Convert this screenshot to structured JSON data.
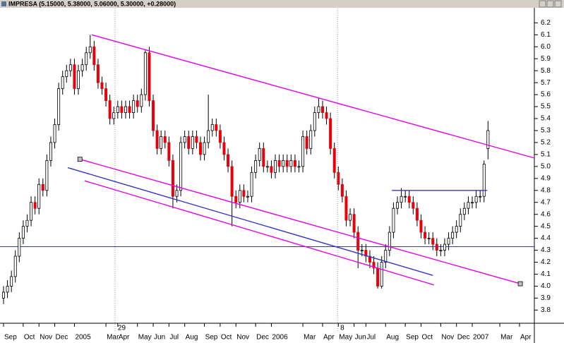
{
  "chart_data": {
    "type": "candlestick",
    "title": "IMPRESA (5.15000, 5.38000, 5.06000, 5.30000, +0.28000)",
    "categories": [
      "Sep",
      null,
      null,
      null,
      null,
      "Oct",
      null,
      null,
      null,
      "Nov",
      null,
      null,
      null,
      "Dec",
      null,
      null,
      null,
      null,
      "2005",
      null,
      null,
      null,
      null,
      null,
      null,
      null,
      "Mar",
      null,
      null,
      "Apr",
      null,
      null,
      null,
      null,
      "May",
      null,
      null,
      null,
      "Jun",
      null,
      null,
      null,
      "Jul",
      null,
      null,
      null,
      "Aug",
      null,
      null,
      null,
      null,
      "Sep",
      null,
      null,
      null,
      "Oct",
      null,
      null,
      null,
      "Nov",
      null,
      null,
      null,
      null,
      "Dec",
      null,
      null,
      null,
      "2006",
      null,
      null,
      null,
      null,
      null,
      null,
      null,
      "Mar",
      null,
      null,
      null,
      null,
      "Apr",
      null,
      null,
      null,
      "May",
      null,
      null,
      null,
      "Jun",
      null,
      null,
      "Jul",
      null,
      null,
      null,
      null,
      "Aug",
      null,
      null,
      null,
      null,
      "Sep",
      null,
      null,
      null,
      "Oct",
      null,
      null,
      null,
      null,
      "Nov",
      null,
      null,
      null,
      "Dec",
      null,
      null,
      null,
      "2007",
      null,
      null,
      null,
      null,
      null,
      null,
      "Mar",
      null,
      null,
      null,
      null,
      "Apr"
    ],
    "open": [
      3.9,
      3.95,
      4.0,
      4.08,
      4.25,
      4.4,
      4.5,
      4.55,
      4.7,
      4.65,
      4.85,
      4.8,
      5.05,
      5.2,
      5.35,
      5.65,
      5.75,
      5.8,
      5.85,
      5.65,
      5.8,
      5.85,
      5.95,
      6.0,
      5.85,
      5.7,
      5.65,
      5.55,
      5.4,
      5.45,
      5.5,
      5.45,
      5.5,
      5.45,
      5.55,
      5.5,
      5.6,
      5.95,
      5.55,
      5.3,
      5.15,
      5.25,
      5.2,
      5.05,
      4.75,
      4.8,
      5.2,
      5.25,
      5.15,
      5.25,
      5.2,
      5.1,
      5.2,
      5.3,
      5.35,
      5.3,
      5.2,
      5.1,
      5.0,
      4.75,
      4.7,
      4.8,
      4.75,
      4.75,
      4.95,
      5.05,
      5.15,
      5.0,
      5.0,
      4.95,
      5.05,
      5.0,
      5.05,
      5.0,
      5.05,
      5.0,
      5.0,
      5.25,
      5.15,
      5.3,
      5.45,
      5.5,
      5.45,
      5.4,
      5.15,
      4.95,
      4.85,
      4.75,
      4.55,
      4.6,
      4.45,
      4.3,
      4.3,
      4.25,
      4.2,
      4.15,
      4.0,
      4.2,
      4.3,
      4.45,
      4.65,
      4.7,
      4.75,
      4.75,
      4.7,
      4.65,
      4.55,
      4.45,
      4.4,
      4.4,
      4.35,
      4.3,
      4.3,
      4.35,
      4.4,
      4.45,
      4.5,
      4.6,
      4.65,
      4.7,
      4.7,
      4.75,
      4.75,
      5.15,
      null,
      null,
      null,
      null,
      null,
      null,
      null,
      null
    ],
    "high": [
      4.0,
      4.05,
      4.13,
      4.3,
      4.45,
      4.55,
      4.6,
      4.75,
      4.75,
      4.9,
      4.9,
      5.1,
      5.25,
      5.4,
      5.7,
      5.8,
      5.85,
      5.9,
      5.9,
      5.85,
      5.9,
      6.0,
      6.1,
      6.05,
      5.9,
      5.75,
      5.7,
      5.6,
      5.5,
      5.55,
      5.55,
      5.55,
      5.55,
      5.6,
      5.6,
      5.65,
      5.97,
      6.0,
      5.6,
      5.35,
      5.3,
      5.3,
      5.25,
      5.1,
      4.85,
      5.25,
      5.3,
      5.3,
      5.3,
      5.3,
      5.25,
      5.25,
      5.6,
      5.4,
      5.4,
      5.35,
      5.25,
      5.15,
      5.05,
      4.8,
      4.85,
      4.85,
      4.8,
      5.0,
      5.1,
      5.2,
      5.2,
      5.05,
      5.05,
      5.1,
      5.1,
      5.1,
      5.1,
      5.1,
      5.1,
      5.05,
      5.3,
      5.3,
      5.35,
      5.5,
      5.57,
      5.55,
      5.5,
      5.45,
      5.2,
      5.0,
      4.9,
      4.8,
      4.65,
      4.65,
      4.5,
      4.35,
      4.35,
      4.3,
      4.25,
      4.2,
      4.25,
      4.35,
      4.5,
      4.7,
      4.75,
      4.82,
      4.8,
      4.8,
      4.75,
      4.7,
      4.6,
      4.5,
      4.45,
      4.45,
      4.4,
      4.35,
      4.4,
      4.45,
      4.5,
      4.55,
      4.65,
      4.7,
      4.75,
      4.75,
      4.8,
      4.8,
      5.05,
      5.38,
      null,
      null,
      null,
      null,
      null,
      null,
      null,
      null
    ],
    "low": [
      3.85,
      3.9,
      3.95,
      4.03,
      4.2,
      4.35,
      4.45,
      4.5,
      4.6,
      4.6,
      4.75,
      4.75,
      5.0,
      5.15,
      5.3,
      5.6,
      5.7,
      5.75,
      5.6,
      5.6,
      5.75,
      5.8,
      5.9,
      5.8,
      5.65,
      5.6,
      5.5,
      5.35,
      5.35,
      5.4,
      5.4,
      5.4,
      5.4,
      5.4,
      5.45,
      5.45,
      5.55,
      5.5,
      5.25,
      5.1,
      5.1,
      5.15,
      5.0,
      4.65,
      4.7,
      4.75,
      5.15,
      5.1,
      5.1,
      5.15,
      5.05,
      5.05,
      5.15,
      5.25,
      5.25,
      5.15,
      5.05,
      4.95,
      4.5,
      4.65,
      4.65,
      4.7,
      4.7,
      4.7,
      4.9,
      5.0,
      4.95,
      4.95,
      4.9,
      4.9,
      4.95,
      4.95,
      4.95,
      4.95,
      4.95,
      4.95,
      4.95,
      5.1,
      5.1,
      5.25,
      5.4,
      5.4,
      5.35,
      5.1,
      4.9,
      4.8,
      4.7,
      4.5,
      4.5,
      4.4,
      4.15,
      4.25,
      4.2,
      4.15,
      4.1,
      3.98,
      3.98,
      4.15,
      4.25,
      4.4,
      4.6,
      4.65,
      4.7,
      4.65,
      4.6,
      4.5,
      4.4,
      4.35,
      4.35,
      4.3,
      4.25,
      4.25,
      4.25,
      4.3,
      4.35,
      4.4,
      4.45,
      4.55,
      4.6,
      4.65,
      4.65,
      4.7,
      4.7,
      5.06,
      null,
      null,
      null,
      null,
      null,
      null,
      null,
      null
    ],
    "close": [
      3.95,
      4.0,
      4.08,
      4.25,
      4.4,
      4.5,
      4.55,
      4.7,
      4.65,
      4.85,
      4.8,
      5.05,
      5.2,
      5.35,
      5.65,
      5.75,
      5.8,
      5.85,
      5.65,
      5.8,
      5.85,
      5.95,
      6.0,
      5.85,
      5.7,
      5.65,
      5.55,
      5.4,
      5.45,
      5.5,
      5.45,
      5.5,
      5.45,
      5.55,
      5.5,
      5.6,
      5.95,
      5.55,
      5.3,
      5.15,
      5.25,
      5.2,
      5.05,
      4.75,
      4.8,
      5.2,
      5.25,
      5.15,
      5.25,
      5.2,
      5.1,
      5.2,
      5.3,
      5.35,
      5.3,
      5.2,
      5.1,
      5.0,
      4.75,
      4.7,
      4.8,
      4.75,
      4.75,
      4.95,
      5.05,
      5.15,
      5.0,
      5.0,
      4.95,
      5.05,
      5.0,
      5.05,
      5.0,
      5.05,
      5.0,
      5.0,
      5.25,
      5.15,
      5.3,
      5.45,
      5.5,
      5.45,
      5.4,
      5.15,
      4.95,
      4.85,
      4.75,
      4.55,
      4.6,
      4.45,
      4.3,
      4.3,
      4.25,
      4.2,
      4.15,
      4.0,
      4.2,
      4.3,
      4.45,
      4.65,
      4.7,
      4.75,
      4.75,
      4.7,
      4.65,
      4.55,
      4.45,
      4.4,
      4.4,
      4.35,
      4.3,
      4.3,
      4.35,
      4.4,
      4.45,
      4.5,
      4.6,
      4.65,
      4.7,
      4.7,
      4.75,
      4.75,
      5.02,
      5.3,
      null,
      null,
      null,
      null,
      null,
      null,
      null,
      null
    ],
    "up_color": "#ffffff",
    "down_color": "#e8000b",
    "wick_color": "#000000",
    "ylim": [
      3.69,
      6.32
    ],
    "yticks": [
      3.8,
      3.9,
      {
        "value": 4,
        "label": "4.0"
      },
      4.1,
      4.2,
      4.3,
      4.4,
      4.5,
      4.6,
      4.7,
      4.8,
      4.9,
      {
        "value": 5,
        "label": "5.0"
      },
      5.1,
      5.2,
      5.3,
      5.4,
      5.5,
      5.6,
      5.7,
      5.8,
      5.9,
      {
        "value": 6,
        "label": "6.0"
      },
      6.1,
      6.2
    ],
    "markers": [
      {
        "label": "29",
        "at": 28.3
      },
      {
        "label": "8",
        "at": 84.8
      }
    ],
    "trendlines": [
      {
        "color": "#e600e6",
        "from": [
          22.4,
          6.1
        ],
        "to": [
          134.8,
          5.07
        ],
        "handles": false
      },
      {
        "color": "#e600e6",
        "from": [
          19.4,
          5.06
        ],
        "to": [
          131.2,
          4.02
        ],
        "handles": true
      },
      {
        "color": "#e600e6",
        "from": [
          20.6,
          4.88
        ],
        "to": [
          109.3,
          4.01
        ],
        "handles": false
      },
      {
        "color": "#3535c8",
        "from": [
          16.3,
          4.99
        ],
        "to": [
          109,
          4.09
        ],
        "handles": false
      },
      {
        "color": "#3535c8",
        "from": [
          98.6,
          4.8
        ],
        "to": [
          122.8,
          4.8
        ],
        "handles": false
      }
    ],
    "hlines": [
      {
        "value": 4.33,
        "color": "#3535c8"
      }
    ]
  }
}
